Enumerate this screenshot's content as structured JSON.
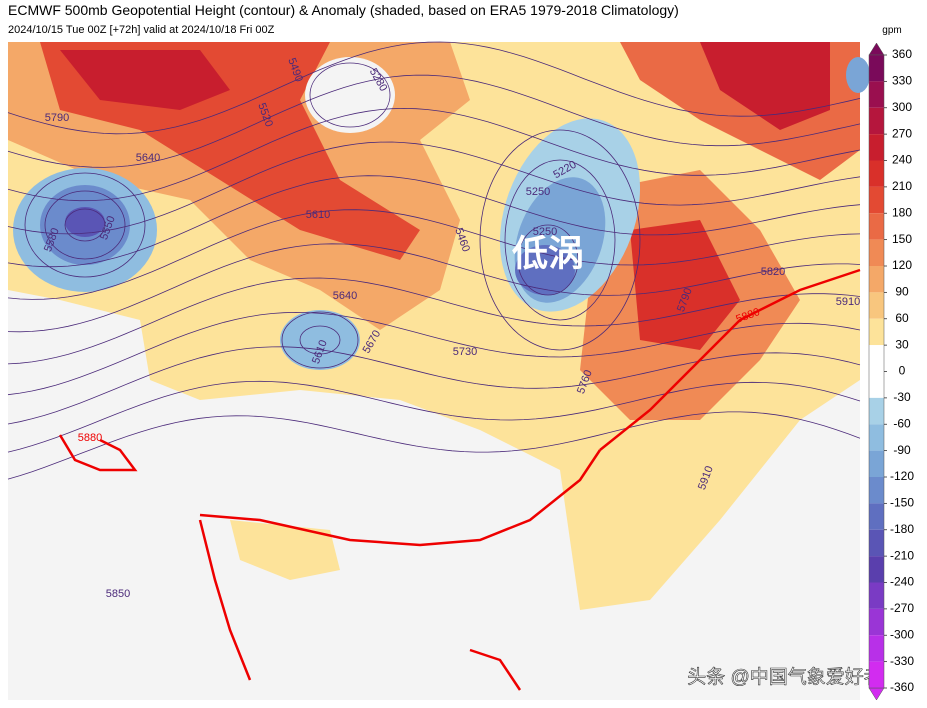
{
  "header": {
    "title": "ECMWF 500mb Geopotential Height (contour) & Anomaly (shaded, based on ERA5 1979-2018 Climatology)",
    "subtitle": "2024/10/15 Tue 00Z [+72h] valid at 2024/10/18 Fri 00Z"
  },
  "map": {
    "contour_labels": [
      "5790",
      "5640",
      "5580",
      "5550",
      "5520",
      "5490",
      "5280",
      "5610",
      "5640",
      "5670",
      "5610",
      "5460",
      "5220",
      "5250",
      "5250",
      "5730",
      "5790",
      "5820",
      "5880",
      "5910",
      "5760",
      "5910",
      "5880",
      "5850"
    ],
    "annotation": "低涡",
    "watermark": "头条 @中国气象爱好者"
  },
  "colorbar": {
    "unit": "gpm",
    "ticks": [
      360,
      330,
      300,
      270,
      240,
      210,
      180,
      150,
      120,
      90,
      60,
      30,
      0,
      -30,
      -60,
      -90,
      -120,
      -150,
      -180,
      -210,
      -240,
      -270,
      -300,
      -330,
      -360
    ],
    "colors": [
      "#7a0a5a",
      "#9a0f4f",
      "#b5163d",
      "#c81e2e",
      "#d9302a",
      "#e34a33",
      "#ea6a45",
      "#f08a55",
      "#f4a868",
      "#f8c67e",
      "#fde39a",
      "#ffffff",
      "#ffffff",
      "#a8d1e7",
      "#8fbde0",
      "#7aa5d6",
      "#6b8bcc",
      "#5f6fc0",
      "#5a55b5",
      "#5a3fad",
      "#7a3bc4",
      "#9a35d6",
      "#b830e8",
      "#d22cf0"
    ]
  }
}
